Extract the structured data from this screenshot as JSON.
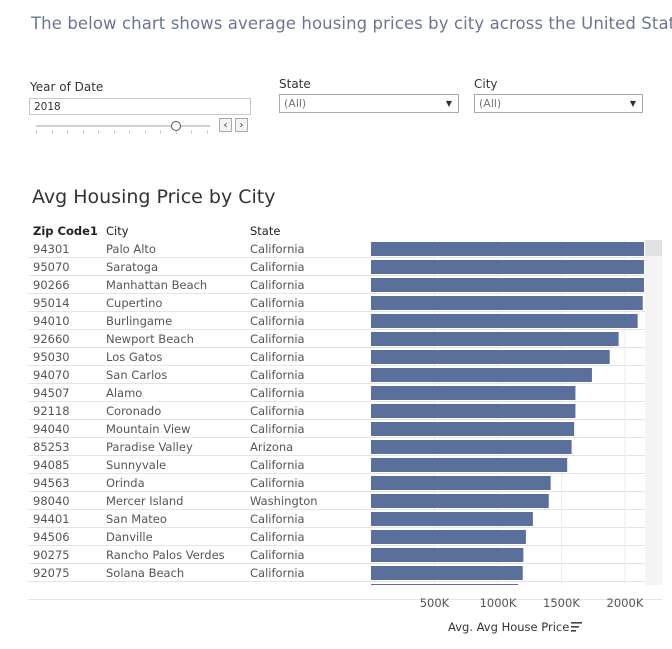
{
  "headline": "The below chart shows average housing prices by city across the United States",
  "filters": {
    "year": {
      "label": "Year of Date",
      "value": "2018"
    },
    "state": {
      "label": "State",
      "value": "(All)"
    },
    "city": {
      "label": "City",
      "value": "(All)"
    },
    "nav_prev": "‹",
    "nav_next": "›"
  },
  "chart_title": "Avg Housing Price by City",
  "columns": {
    "zip": "Zip Code1",
    "city": "City",
    "state": "State"
  },
  "axis_title": "Avg. Avg House Price",
  "colors": {
    "bar": "#5b6f9c",
    "headline": "#6a7690",
    "grid": "#e4e4e4"
  },
  "chart_data": {
    "type": "bar",
    "orientation": "horizontal",
    "xlabel": "Avg. Avg House Price",
    "xlim": [
      0,
      2150000
    ],
    "ticks": [
      {
        "value": 500000,
        "label": "500K"
      },
      {
        "value": 1000000,
        "label": "1000K"
      },
      {
        "value": 1500000,
        "label": "1500K"
      },
      {
        "value": 2000000,
        "label": "2000K"
      }
    ],
    "rows": [
      {
        "zip": "94301",
        "city": "Palo Alto",
        "state": "California",
        "value": 2150000
      },
      {
        "zip": "95070",
        "city": "Saratoga",
        "state": "California",
        "value": 2150000
      },
      {
        "zip": "90266",
        "city": "Manhattan Beach",
        "state": "California",
        "value": 2150000
      },
      {
        "zip": "95014",
        "city": "Cupertino",
        "state": "California",
        "value": 2140000
      },
      {
        "zip": "94010",
        "city": "Burlingame",
        "state": "California",
        "value": 2100000
      },
      {
        "zip": "92660",
        "city": "Newport Beach",
        "state": "California",
        "value": 1950000
      },
      {
        "zip": "95030",
        "city": "Los Gatos",
        "state": "California",
        "value": 1880000
      },
      {
        "zip": "94070",
        "city": "San Carlos",
        "state": "California",
        "value": 1740000
      },
      {
        "zip": "94507",
        "city": "Alamo",
        "state": "California",
        "value": 1610000
      },
      {
        "zip": "92118",
        "city": "Coronado",
        "state": "California",
        "value": 1610000
      },
      {
        "zip": "94040",
        "city": "Mountain View",
        "state": "California",
        "value": 1600000
      },
      {
        "zip": "85253",
        "city": "Paradise Valley",
        "state": "Arizona",
        "value": 1580000
      },
      {
        "zip": "94085",
        "city": "Sunnyvale",
        "state": "California",
        "value": 1545000
      },
      {
        "zip": "94563",
        "city": "Orinda",
        "state": "California",
        "value": 1415000
      },
      {
        "zip": "98040",
        "city": "Mercer Island",
        "state": "Washington",
        "value": 1400000
      },
      {
        "zip": "94401",
        "city": "San Mateo",
        "state": "California",
        "value": 1275000
      },
      {
        "zip": "94506",
        "city": "Danville",
        "state": "California",
        "value": 1220000
      },
      {
        "zip": "90275",
        "city": "Rancho Palos Verdes",
        "state": "California",
        "value": 1200000
      },
      {
        "zip": "92075",
        "city": "Solana Beach",
        "state": "California",
        "value": 1195000
      },
      {
        "zip": "",
        "city": "",
        "state": "",
        "value": 1160000
      }
    ]
  }
}
